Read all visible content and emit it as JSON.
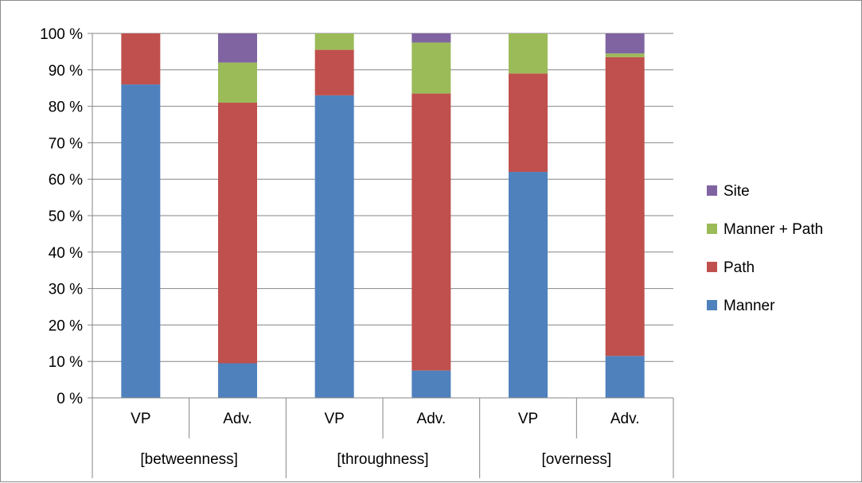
{
  "chart_data": {
    "type": "bar",
    "stacked": true,
    "percent_axis": true,
    "groups": [
      {
        "label": "[betweenness]",
        "categories": [
          "VP",
          "Adv."
        ]
      },
      {
        "label": "[throughness]",
        "categories": [
          "VP",
          "Adv."
        ]
      },
      {
        "label": "[overness]",
        "categories": [
          "VP",
          "Adv."
        ]
      }
    ],
    "categories": [
      "VP",
      "Adv.",
      "VP",
      "Adv.",
      "VP",
      "Adv."
    ],
    "series": [
      {
        "name": "Manner",
        "color": "#4f81bd",
        "values": [
          86,
          9.5,
          83,
          7.5,
          62,
          11.5
        ]
      },
      {
        "name": "Path",
        "color": "#c0504d",
        "values": [
          14,
          71.5,
          12.5,
          76,
          27,
          82
        ]
      },
      {
        "name": "Manner + Path",
        "color": "#9bbb59",
        "values": [
          0,
          11,
          4.5,
          14,
          11,
          1
        ]
      },
      {
        "name": "Site",
        "color": "#8064a2",
        "values": [
          0,
          8,
          0,
          2.5,
          0,
          5.5
        ]
      }
    ],
    "ylim": [
      0,
      100
    ],
    "yticks": [
      0,
      10,
      20,
      30,
      40,
      50,
      60,
      70,
      80,
      90,
      100
    ],
    "ytick_labels": [
      "0 %",
      "10 %",
      "20 %",
      "30 %",
      "40 %",
      "50 %",
      "60 %",
      "70 %",
      "80 %",
      "90 %",
      "100 %"
    ],
    "grid": true,
    "legend_position": "right",
    "title": "",
    "xlabel": "",
    "ylabel": ""
  }
}
